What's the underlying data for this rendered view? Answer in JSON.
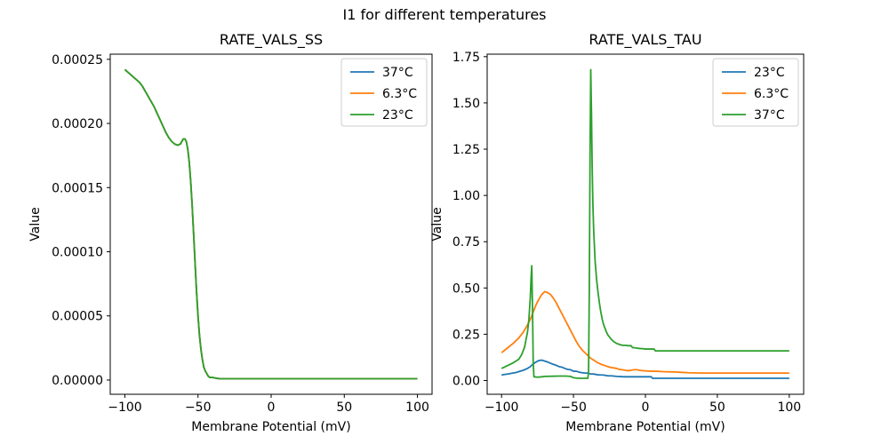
{
  "figure": {
    "suptitle": "I1 for different temperatures",
    "background": "#ffffff"
  },
  "colors": {
    "blue": "#1f77b4",
    "orange": "#ff7f0e",
    "green": "#2ca02c",
    "axis": "#000000",
    "legend_border": "#cccccc"
  },
  "chart_data": [
    {
      "type": "line",
      "title": "RATE_VALS_SS",
      "xlabel": "Membrane Potential (mV)",
      "ylabel": "Value",
      "xlim": [
        -110,
        110
      ],
      "ylim": [
        -1.11e-05,
        0.000254
      ],
      "grid": false,
      "legend_loc": "upper right",
      "xticks": [
        {
          "v": -100,
          "label": "−100"
        },
        {
          "v": -50,
          "label": "−50"
        },
        {
          "v": 0,
          "label": "0"
        },
        {
          "v": 50,
          "label": "50"
        },
        {
          "v": 100,
          "label": "100"
        }
      ],
      "yticks": [
        {
          "v": 0.0,
          "label": "0.00000"
        },
        {
          "v": 5e-05,
          "label": "0.00005"
        },
        {
          "v": 0.0001,
          "label": "0.00010"
        },
        {
          "v": 0.00015,
          "label": "0.00015"
        },
        {
          "v": 0.0002,
          "label": "0.00020"
        },
        {
          "v": 0.00025,
          "label": "0.00025"
        }
      ],
      "series": [
        {
          "name": "37°C",
          "color": "#1f77b4",
          "points": "shared"
        },
        {
          "name": "6.3°C",
          "color": "#ff7f0e",
          "points": "shared"
        },
        {
          "name": "23°C",
          "color": "#2ca02c",
          "points": "shared"
        }
      ],
      "shared_points": [
        [
          -100,
          0.000242
        ],
        [
          -97,
          0.000239
        ],
        [
          -95,
          0.000237
        ],
        [
          -92,
          0.000234
        ],
        [
          -90,
          0.000232
        ],
        [
          -88,
          0.000229
        ],
        [
          -86,
          0.000225
        ],
        [
          -84,
          0.000221
        ],
        [
          -82,
          0.000217
        ],
        [
          -80,
          0.000213
        ],
        [
          -78,
          0.000208
        ],
        [
          -76,
          0.000203
        ],
        [
          -74,
          0.000198
        ],
        [
          -72,
          0.000193
        ],
        [
          -70,
          0.000189
        ],
        [
          -68,
          0.000186
        ],
        [
          -66,
          0.000184
        ],
        [
          -64,
          0.000183
        ],
        [
          -62,
          0.000184
        ],
        [
          -61,
          0.000186
        ],
        [
          -60,
          0.000188
        ],
        [
          -59,
          0.000188
        ],
        [
          -58,
          0.000186
        ],
        [
          -57,
          0.00018
        ],
        [
          -56,
          0.00017
        ],
        [
          -55,
          0.000155
        ],
        [
          -54,
          0.000136
        ],
        [
          -53,
          0.000114
        ],
        [
          -52,
          9.1e-05
        ],
        [
          -51,
          6.9e-05
        ],
        [
          -50,
          5e-05
        ],
        [
          -49,
          3.5e-05
        ],
        [
          -48,
          2.4e-05
        ],
        [
          -47,
          1.6e-05
        ],
        [
          -46,
          1e-05
        ],
        [
          -45,
          7e-06
        ],
        [
          -44,
          5e-06
        ],
        [
          -43,
          3e-06
        ],
        [
          -42,
          2e-06
        ],
        [
          -40,
          2e-06
        ],
        [
          -38,
          1.5e-06
        ],
        [
          -35,
          1e-06
        ],
        [
          -30,
          1e-06
        ],
        [
          -20,
          1e-06
        ],
        [
          -10,
          1e-06
        ],
        [
          0,
          1e-06
        ],
        [
          20,
          1e-06
        ],
        [
          50,
          1e-06
        ],
        [
          80,
          1e-06
        ],
        [
          100,
          1e-06
        ]
      ]
    },
    {
      "type": "line",
      "title": "RATE_VALS_TAU",
      "xlabel": "Membrane Potential (mV)",
      "ylabel": "Value",
      "xlim": [
        -110,
        110
      ],
      "ylim": [
        -0.0745,
        1.7635
      ],
      "grid": false,
      "legend_loc": "upper right",
      "xticks": [
        {
          "v": -100,
          "label": "−100"
        },
        {
          "v": -50,
          "label": "−50"
        },
        {
          "v": 0,
          "label": "0"
        },
        {
          "v": 50,
          "label": "50"
        },
        {
          "v": 100,
          "label": "100"
        }
      ],
      "yticks": [
        {
          "v": 0.0,
          "label": "0.00"
        },
        {
          "v": 0.25,
          "label": "0.25"
        },
        {
          "v": 0.5,
          "label": "0.50"
        },
        {
          "v": 0.75,
          "label": "0.75"
        },
        {
          "v": 1.0,
          "label": "1.00"
        },
        {
          "v": 1.25,
          "label": "1.25"
        },
        {
          "v": 1.5,
          "label": "1.50"
        },
        {
          "v": 1.75,
          "label": "1.75"
        }
      ],
      "series": [
        {
          "name": "23°C",
          "color": "#1f77b4",
          "points": [
            [
              -100,
              0.03
            ],
            [
              -95,
              0.036
            ],
            [
              -90,
              0.043
            ],
            [
              -85,
              0.055
            ],
            [
              -82,
              0.065
            ],
            [
              -80,
              0.075
            ],
            [
              -78,
              0.09
            ],
            [
              -76,
              0.1
            ],
            [
              -74,
              0.108
            ],
            [
              -72,
              0.11
            ],
            [
              -70,
              0.105
            ],
            [
              -68,
              0.1
            ],
            [
              -65,
              0.09
            ],
            [
              -62,
              0.082
            ],
            [
              -60,
              0.075
            ],
            [
              -58,
              0.072
            ],
            [
              -56,
              0.065
            ],
            [
              -54,
              0.06
            ],
            [
              -52,
              0.058
            ],
            [
              -50,
              0.05
            ],
            [
              -48,
              0.05
            ],
            [
              -46,
              0.045
            ],
            [
              -44,
              0.042
            ],
            [
              -42,
              0.04
            ],
            [
              -40,
              0.04
            ],
            [
              -38,
              0.035
            ],
            [
              -36,
              0.035
            ],
            [
              -34,
              0.032
            ],
            [
              -32,
              0.03
            ],
            [
              -30,
              0.03
            ],
            [
              -28,
              0.028
            ],
            [
              -26,
              0.025
            ],
            [
              -24,
              0.025
            ],
            [
              -22,
              0.024
            ],
            [
              -20,
              0.022
            ],
            [
              -15,
              0.02
            ],
            [
              -10,
              0.02
            ],
            [
              -5,
              0.02
            ],
            [
              0,
              0.02
            ],
            [
              4,
              0.02
            ],
            [
              5,
              0.012
            ],
            [
              10,
              0.012
            ],
            [
              20,
              0.012
            ],
            [
              40,
              0.012
            ],
            [
              70,
              0.012
            ],
            [
              100,
              0.012
            ]
          ]
        },
        {
          "name": "6.3°C",
          "color": "#ff7f0e",
          "points": [
            [
              -100,
              0.15
            ],
            [
              -96,
              0.175
            ],
            [
              -92,
              0.2
            ],
            [
              -88,
              0.23
            ],
            [
              -85,
              0.26
            ],
            [
              -82,
              0.3
            ],
            [
              -80,
              0.33
            ],
            [
              -78,
              0.37
            ],
            [
              -76,
              0.41
            ],
            [
              -74,
              0.44
            ],
            [
              -72,
              0.465
            ],
            [
              -70,
              0.48
            ],
            [
              -68,
              0.475
            ],
            [
              -66,
              0.465
            ],
            [
              -64,
              0.445
            ],
            [
              -62,
              0.42
            ],
            [
              -60,
              0.39
            ],
            [
              -58,
              0.36
            ],
            [
              -56,
              0.33
            ],
            [
              -54,
              0.3
            ],
            [
              -52,
              0.27
            ],
            [
              -50,
              0.24
            ],
            [
              -48,
              0.21
            ],
            [
              -46,
              0.185
            ],
            [
              -44,
              0.165
            ],
            [
              -42,
              0.15
            ],
            [
              -40,
              0.135
            ],
            [
              -38,
              0.12
            ],
            [
              -36,
              0.11
            ],
            [
              -34,
              0.1
            ],
            [
              -32,
              0.092
            ],
            [
              -30,
              0.085
            ],
            [
              -28,
              0.08
            ],
            [
              -26,
              0.075
            ],
            [
              -24,
              0.07
            ],
            [
              -22,
              0.068
            ],
            [
              -20,
              0.065
            ],
            [
              -18,
              0.06
            ],
            [
              -16,
              0.058
            ],
            [
              -14,
              0.055
            ],
            [
              -12,
              0.053
            ],
            [
              -10,
              0.055
            ],
            [
              -8,
              0.058
            ],
            [
              -6,
              0.058
            ],
            [
              -4,
              0.055
            ],
            [
              -2,
              0.053
            ],
            [
              0,
              0.052
            ],
            [
              4,
              0.05
            ],
            [
              8,
              0.05
            ],
            [
              12,
              0.048
            ],
            [
              16,
              0.047
            ],
            [
              20,
              0.046
            ],
            [
              25,
              0.044
            ],
            [
              30,
              0.042
            ],
            [
              40,
              0.04
            ],
            [
              50,
              0.04
            ],
            [
              70,
              0.04
            ],
            [
              100,
              0.04
            ]
          ]
        },
        {
          "name": "37°C",
          "color": "#2ca02c",
          "points": [
            [
              -100,
              0.065
            ],
            [
              -96,
              0.08
            ],
            [
              -92,
              0.095
            ],
            [
              -90,
              0.105
            ],
            [
              -88,
              0.115
            ],
            [
              -86,
              0.14
            ],
            [
              -84,
              0.18
            ],
            [
              -82,
              0.26
            ],
            [
              -81,
              0.33
            ],
            [
              -80,
              0.45
            ],
            [
              -79.5,
              0.55
            ],
            [
              -79,
              0.62
            ],
            [
              -78.5,
              0.4
            ],
            [
              -78,
              0.1
            ],
            [
              -77.5,
              0.02
            ],
            [
              -75,
              0.018
            ],
            [
              -72,
              0.02
            ],
            [
              -70,
              0.022
            ],
            [
              -65,
              0.023
            ],
            [
              -60,
              0.024
            ],
            [
              -55,
              0.024
            ],
            [
              -52,
              0.022
            ],
            [
              -50,
              0.015
            ],
            [
              -48,
              0.013
            ],
            [
              -46,
              0.012
            ],
            [
              -44,
              0.012
            ],
            [
              -42,
              0.012
            ],
            [
              -40,
              0.012
            ],
            [
              -39.5,
              0.05
            ],
            [
              -39,
              0.5
            ],
            [
              -38.5,
              1.2
            ],
            [
              -38,
              1.68
            ],
            [
              -37.5,
              1.45
            ],
            [
              -37,
              1.15
            ],
            [
              -36.5,
              0.95
            ],
            [
              -36,
              0.82
            ],
            [
              -35,
              0.65
            ],
            [
              -34,
              0.55
            ],
            [
              -33,
              0.48
            ],
            [
              -32,
              0.42
            ],
            [
              -31,
              0.37
            ],
            [
              -30,
              0.33
            ],
            [
              -29,
              0.3
            ],
            [
              -28,
              0.28
            ],
            [
              -27,
              0.26
            ],
            [
              -26,
              0.245
            ],
            [
              -25,
              0.235
            ],
            [
              -24,
              0.225
            ],
            [
              -22,
              0.21
            ],
            [
              -20,
              0.2
            ],
            [
              -18,
              0.195
            ],
            [
              -16,
              0.19
            ],
            [
              -14,
              0.19
            ],
            [
              -12,
              0.188
            ],
            [
              -10,
              0.188
            ],
            [
              -9,
              0.178
            ],
            [
              -6,
              0.175
            ],
            [
              -4,
              0.173
            ],
            [
              -2,
              0.172
            ],
            [
              0,
              0.17
            ],
            [
              4,
              0.17
            ],
            [
              6,
              0.17
            ],
            [
              7,
              0.16
            ],
            [
              10,
              0.16
            ],
            [
              20,
              0.16
            ],
            [
              30,
              0.16
            ],
            [
              50,
              0.16
            ],
            [
              70,
              0.16
            ],
            [
              100,
              0.16
            ]
          ]
        }
      ]
    }
  ]
}
